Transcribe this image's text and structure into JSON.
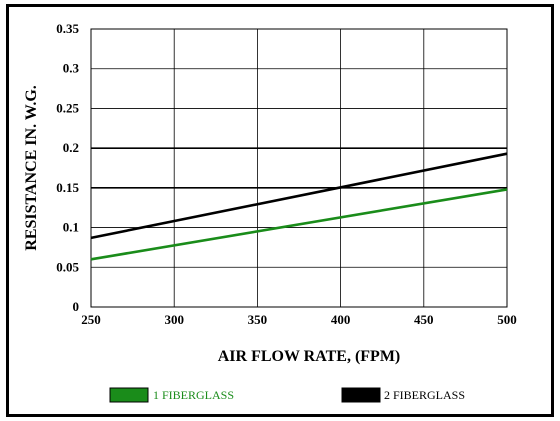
{
  "chart_data": {
    "type": "line",
    "title": "",
    "xlabel": "AIR FLOW RATE, (FPM)",
    "ylabel": "RESISTANCE IN. W.G.",
    "xlim": [
      250,
      500
    ],
    "ylim": [
      0,
      0.35
    ],
    "x_ticks": [
      250,
      300,
      350,
      400,
      450,
      500
    ],
    "x_tick_labels": [
      "250",
      "300",
      "350",
      "400",
      "450",
      "500"
    ],
    "y_ticks": [
      0,
      0.05,
      0.1,
      0.15,
      0.2,
      0.25,
      0.3,
      0.35
    ],
    "y_tick_labels": [
      "0",
      "0.05",
      "0.1",
      "0.15",
      "0.2",
      "0.25",
      "0.3",
      "0.35"
    ],
    "grid": true,
    "legend_position": "bottom",
    "series": [
      {
        "name": "1 FIBERGLASS",
        "color": "#1a8c1a",
        "x": [
          250,
          500
        ],
        "y": [
          0.06,
          0.148
        ]
      },
      {
        "name": "2 FIBERGLASS",
        "color": "#000000",
        "x": [
          250,
          500
        ],
        "y": [
          0.087,
          0.193
        ]
      }
    ]
  }
}
